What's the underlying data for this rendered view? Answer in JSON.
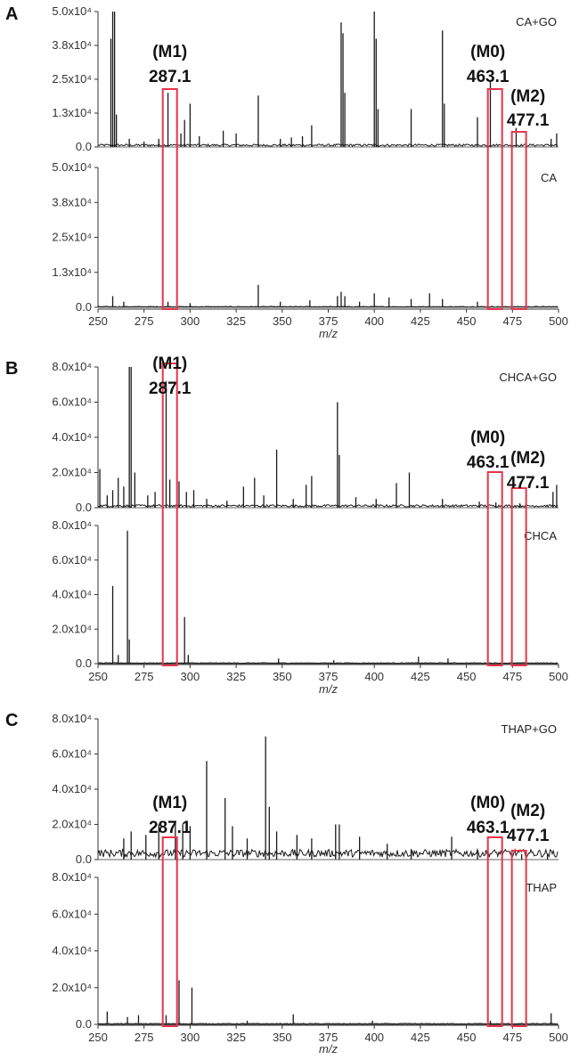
{
  "chart_data": [
    {
      "type": "line",
      "panel_label": "A",
      "xlabel": "m/z",
      "xlim": [
        250,
        500
      ],
      "x_ticks": [
        "250",
        "275",
        "300",
        "325",
        "350",
        "375",
        "400",
        "425",
        "450",
        "475",
        "500"
      ],
      "y_ticks": [
        "0.0",
        "1.3x10⁴",
        "2.5x10⁴",
        "3.8x10⁴",
        "5.0x10⁴"
      ],
      "ylim": [
        0,
        50000
      ],
      "series": [
        {
          "name": "CA+GO",
          "peaks": [
            [
              257,
              40000
            ],
            [
              258,
              50000
            ],
            [
              259,
              50000
            ],
            [
              260,
              12000
            ],
            [
              267,
              3000
            ],
            [
              275,
              2000
            ],
            [
              283,
              3000
            ],
            [
              288,
              20000
            ],
            [
              295,
              5000
            ],
            [
              297,
              10000
            ],
            [
              300,
              16000
            ],
            [
              305,
              4000
            ],
            [
              318,
              6000
            ],
            [
              325,
              5000
            ],
            [
              337,
              19000
            ],
            [
              349,
              3000
            ],
            [
              355,
              3500
            ],
            [
              361,
              4000
            ],
            [
              366,
              8000
            ],
            [
              382,
              46000
            ],
            [
              383,
              42000
            ],
            [
              384,
              20000
            ],
            [
              400,
              50000
            ],
            [
              401,
              40000
            ],
            [
              402,
              14000
            ],
            [
              420,
              14000
            ],
            [
              437,
              43000
            ],
            [
              438,
              16000
            ],
            [
              456,
              11000
            ],
            [
              463,
              24000
            ],
            [
              477,
              7000
            ],
            [
              496,
              3000
            ],
            [
              499,
              5000
            ]
          ]
        },
        {
          "name": "CA",
          "peaks": [
            [
              258,
              4000
            ],
            [
              264,
              2000
            ],
            [
              288,
              2000
            ],
            [
              300,
              1500
            ],
            [
              337,
              8000
            ],
            [
              349,
              2000
            ],
            [
              365,
              2500
            ],
            [
              380,
              4000
            ],
            [
              382,
              5500
            ],
            [
              384,
              4000
            ],
            [
              392,
              2000
            ],
            [
              400,
              5000
            ],
            [
              408,
              3500
            ],
            [
              420,
              3000
            ],
            [
              430,
              5000
            ],
            [
              437,
              3000
            ],
            [
              456,
              2000
            ]
          ]
        }
      ],
      "annotations": [
        {
          "id": "M1",
          "label": "(M1)",
          "mz": "287.1",
          "x": 287.1
        },
        {
          "id": "M0",
          "label": "(M0)",
          "mz": "463.1",
          "x": 463.1
        },
        {
          "id": "M2",
          "label": "(M2)",
          "mz": "477.1",
          "x": 477.1
        }
      ]
    },
    {
      "type": "line",
      "panel_label": "B",
      "xlabel": "m/z",
      "xlim": [
        250,
        500
      ],
      "x_ticks": [
        "250",
        "275",
        "300",
        "325",
        "350",
        "375",
        "400",
        "425",
        "450",
        "475",
        "500"
      ],
      "y_ticks": [
        "0.0",
        "2.0x10⁴",
        "4.0x10⁴",
        "6.0x10⁴",
        "8.0x10⁴"
      ],
      "ylim": [
        0,
        80000
      ],
      "series": [
        {
          "name": "CHCA+GO",
          "peaks": [
            [
              251,
              22000
            ],
            [
              255,
              7000
            ],
            [
              258,
              10000
            ],
            [
              261,
              17000
            ],
            [
              264,
              12000
            ],
            [
              267,
              80000
            ],
            [
              268,
              80000
            ],
            [
              270,
              20000
            ],
            [
              277,
              7000
            ],
            [
              281,
              9000
            ],
            [
              287,
              72000
            ],
            [
              289,
              16000
            ],
            [
              294,
              15000
            ],
            [
              298,
              9000
            ],
            [
              302,
              10000
            ],
            [
              309,
              5000
            ],
            [
              320,
              4000
            ],
            [
              329,
              12000
            ],
            [
              335,
              17000
            ],
            [
              340,
              7000
            ],
            [
              347,
              33000
            ],
            [
              356,
              5000
            ],
            [
              363,
              13000
            ],
            [
              366,
              18000
            ],
            [
              380,
              60000
            ],
            [
              381,
              30000
            ],
            [
              390,
              6000
            ],
            [
              401,
              5000
            ],
            [
              412,
              14000
            ],
            [
              419,
              20000
            ],
            [
              437,
              5000
            ],
            [
              457,
              3500
            ],
            [
              466,
              3000
            ],
            [
              479,
              2500
            ],
            [
              497,
              9000
            ],
            [
              499,
              13000
            ]
          ]
        },
        {
          "name": "CHCA",
          "peaks": [
            [
              258,
              45000
            ],
            [
              261,
              5000
            ],
            [
              266,
              77000
            ],
            [
              267,
              14000
            ],
            [
              297,
              27000
            ],
            [
              299,
              5000
            ],
            [
              348,
              3000
            ],
            [
              378,
              2000
            ],
            [
              424,
              4000
            ],
            [
              440,
              3000
            ]
          ]
        }
      ],
      "annotations": [
        {
          "id": "M1",
          "label": "(M1)",
          "mz": "287.1",
          "x": 287.1
        },
        {
          "id": "M0",
          "label": "(M0)",
          "mz": "463.1",
          "x": 463.1
        },
        {
          "id": "M2",
          "label": "(M2)",
          "mz": "477.1",
          "x": 477.1
        }
      ]
    },
    {
      "type": "line",
      "panel_label": "C",
      "xlabel": "m/z",
      "xlim": [
        250,
        500
      ],
      "x_ticks": [
        "250",
        "275",
        "300",
        "325",
        "350",
        "375",
        "400",
        "425",
        "450",
        "475",
        "500"
      ],
      "y_ticks": [
        "0.0",
        "2.0x10⁴",
        "4.0x10⁴",
        "6.0x10⁴",
        "8.0x10⁴"
      ],
      "ylim": [
        0,
        80000
      ],
      "series": [
        {
          "name": "THAP+GO",
          "peaks": [
            [
              264,
              12000
            ],
            [
              268,
              16000
            ],
            [
              276,
              14000
            ],
            [
              283,
              20000
            ],
            [
              292,
              22000
            ],
            [
              296,
              20000
            ],
            [
              300,
              19000
            ],
            [
              309,
              56000
            ],
            [
              319,
              35000
            ],
            [
              323,
              19000
            ],
            [
              331,
              12000
            ],
            [
              341,
              70000
            ],
            [
              343,
              30000
            ],
            [
              347,
              16000
            ],
            [
              358,
              14000
            ],
            [
              366,
              12000
            ],
            [
              379,
              20000
            ],
            [
              381,
              20000
            ],
            [
              392,
              13000
            ],
            [
              407,
              9000
            ],
            [
              420,
              6000
            ],
            [
              442,
              13000
            ],
            [
              456,
              5000
            ],
            [
              480,
              3000
            ],
            [
              494,
              3000
            ]
          ]
        },
        {
          "name": "THAP",
          "peaks": [
            [
              255,
              7000
            ],
            [
              266,
              4000
            ],
            [
              272,
              5000
            ],
            [
              287,
              5000
            ],
            [
              294,
              24000
            ],
            [
              301,
              20000
            ],
            [
              331,
              2000
            ],
            [
              356,
              5500
            ],
            [
              399,
              2000
            ],
            [
              463,
              2000
            ],
            [
              496,
              6000
            ]
          ]
        }
      ],
      "annotations": [
        {
          "id": "M1",
          "label": "(M1)",
          "mz": "287.1",
          "x": 287.1
        },
        {
          "id": "M0",
          "label": "(M0)",
          "mz": "463.1",
          "x": 463.1
        },
        {
          "id": "M2",
          "label": "(M2)",
          "mz": "477.1",
          "x": 477.1
        }
      ]
    }
  ],
  "colors": {
    "trace": "#1a1a1a",
    "highlight_box": "#e8344a",
    "axis": "#333333"
  }
}
